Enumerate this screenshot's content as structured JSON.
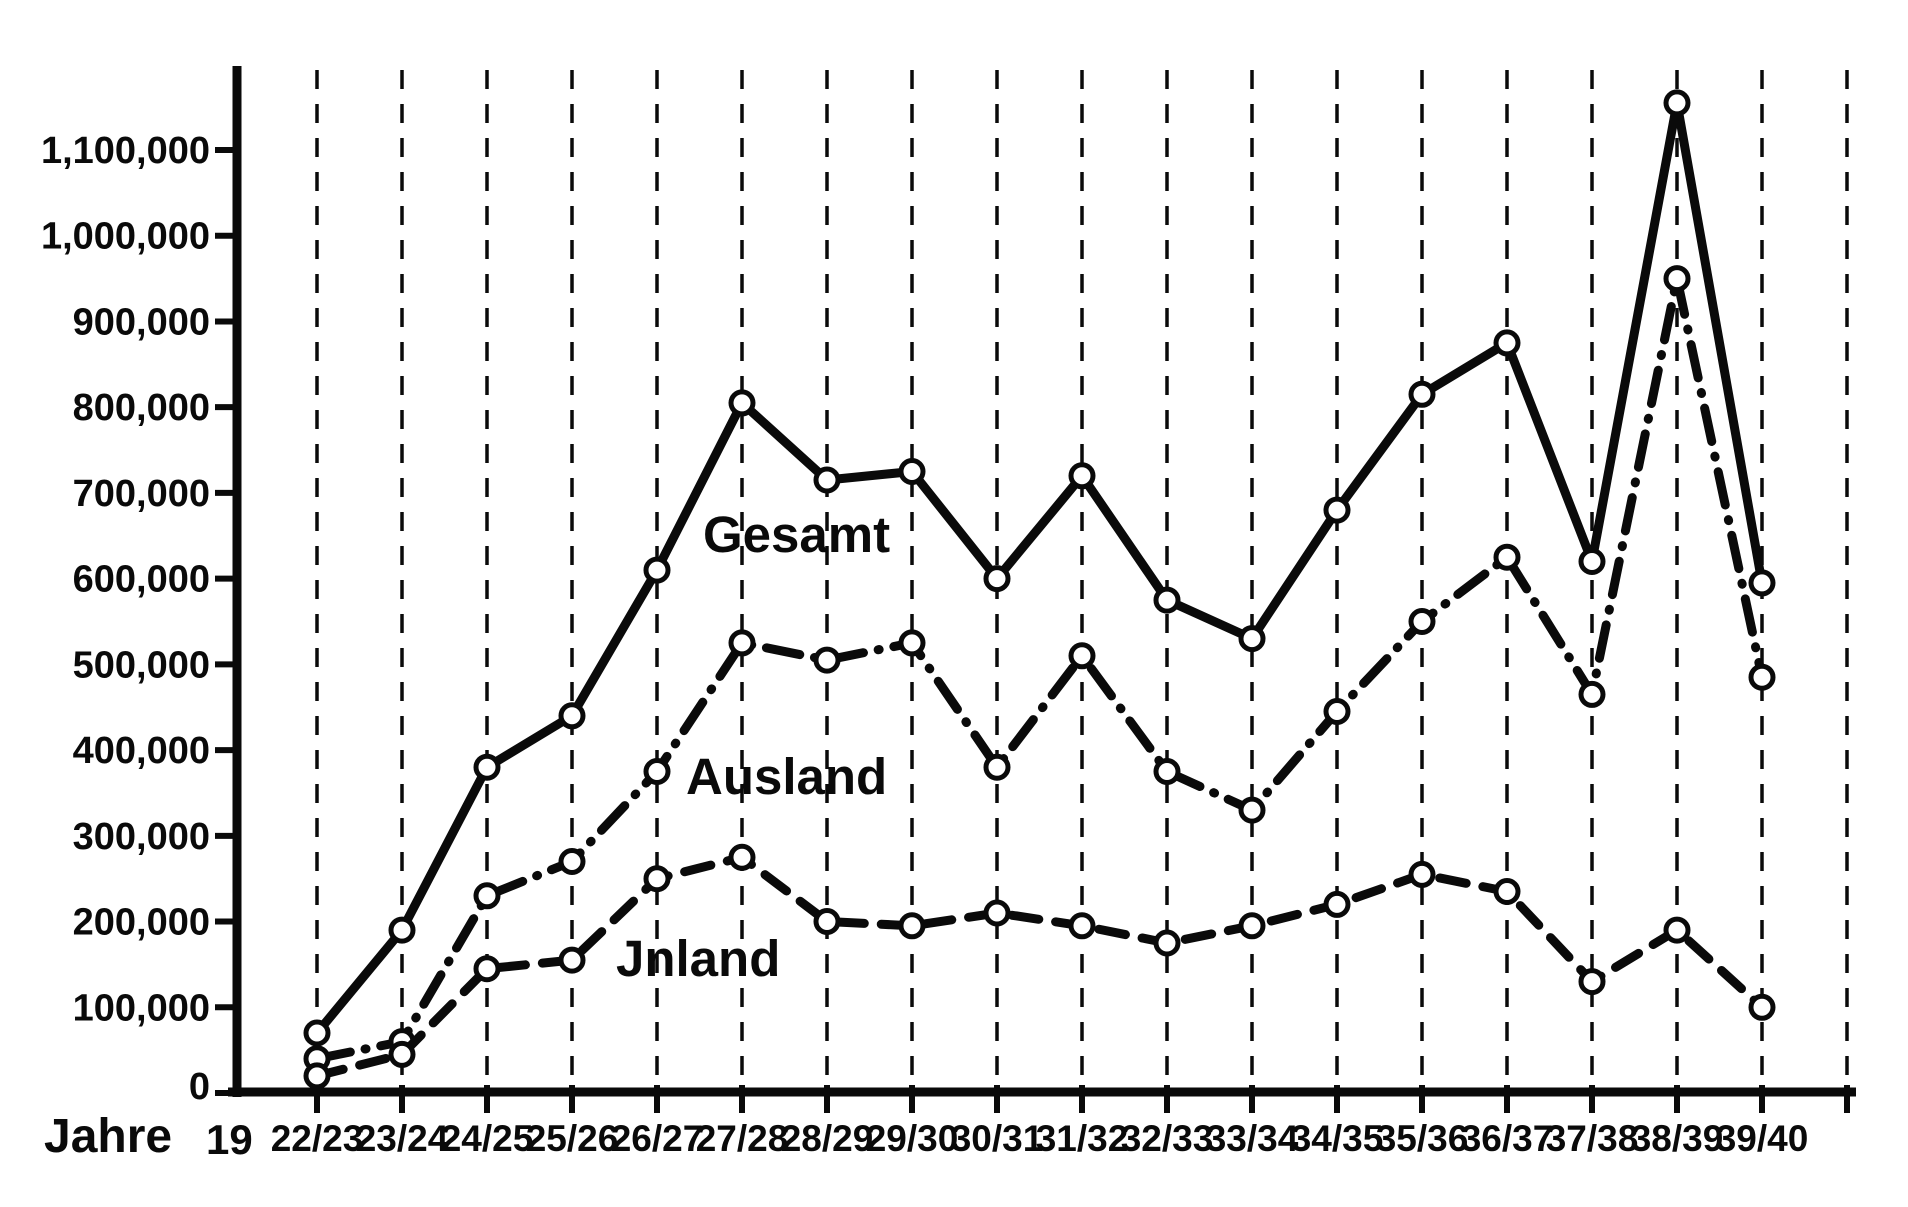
{
  "figure": {
    "background": "#ffffff",
    "ink_color": "#0a0a0a"
  },
  "chart_data": {
    "type": "line",
    "title": "",
    "xlabel": "Jahre",
    "x_axis_century_prefix": "19",
    "ylabel": "",
    "categories": [
      "22/23",
      "23/24",
      "24/25",
      "25/26",
      "26/27",
      "27/28",
      "28/29",
      "29/30",
      "30/31",
      "31/32",
      "32/33",
      "33/34",
      "34/35",
      "35/36",
      "36/37",
      "37/38",
      "38/39",
      "39/40"
    ],
    "series": [
      {
        "name": "Gesamt",
        "line_style": "solid",
        "marker": "open-circle",
        "values": [
          70000,
          190000,
          380000,
          440000,
          610000,
          805000,
          715000,
          725000,
          600000,
          720000,
          575000,
          530000,
          680000,
          815000,
          875000,
          620000,
          1155000,
          595000
        ]
      },
      {
        "name": "Ausland",
        "line_style": "dashdot",
        "marker": "open-circle",
        "values": [
          40000,
          60000,
          230000,
          270000,
          375000,
          525000,
          505000,
          525000,
          380000,
          510000,
          375000,
          330000,
          445000,
          550000,
          625000,
          465000,
          950000,
          485000
        ]
      },
      {
        "name": "Jnland",
        "line_style": "dashed",
        "marker": "open-circle",
        "values": [
          20000,
          45000,
          145000,
          155000,
          250000,
          275000,
          200000,
          195000,
          210000,
          195000,
          175000,
          195000,
          220000,
          255000,
          235000,
          130000,
          190000,
          100000
        ]
      }
    ],
    "yticks": [
      {
        "value": 0,
        "label": "0"
      },
      {
        "value": 100000,
        "label": "100,000"
      },
      {
        "value": 200000,
        "label": "200,000"
      },
      {
        "value": 300000,
        "label": "300,000"
      },
      {
        "value": 400000,
        "label": "400,000"
      },
      {
        "value": 500000,
        "label": "500,000"
      },
      {
        "value": 600000,
        "label": "600,000"
      },
      {
        "value": 700000,
        "label": "700,000"
      },
      {
        "value": 800000,
        "label": "800,000"
      },
      {
        "value": 900000,
        "label": "900,000"
      },
      {
        "value": 1000000,
        "label": "1,000,000"
      },
      {
        "value": 1100000,
        "label": "1,100,000"
      }
    ],
    "ylim": [
      0,
      1160000
    ],
    "grid": "vertical-dashed",
    "extra_gridline_after_last_category": true,
    "legend": "inline-labels"
  }
}
